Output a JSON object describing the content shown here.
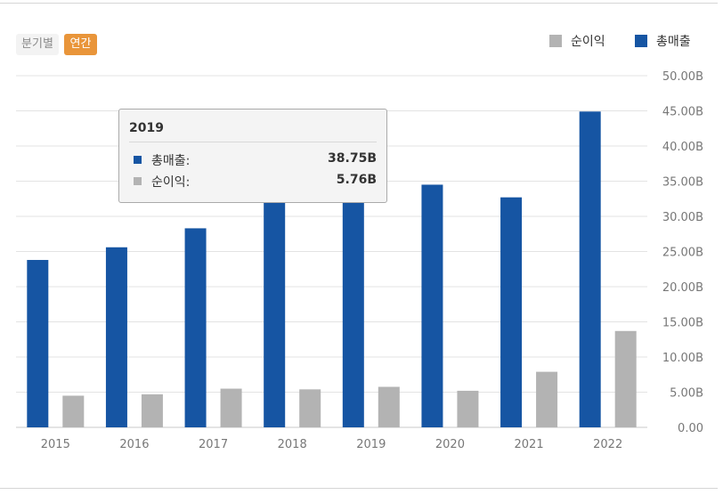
{
  "toggles": {
    "quarterly_label": "분기별",
    "annual_label": "연간",
    "active": "annual"
  },
  "legend": {
    "net_income_label": "순이익",
    "revenue_label": "총매출"
  },
  "colors": {
    "revenue": "#1655a3",
    "net_income": "#b3b3b3",
    "active_toggle": "#e9953a",
    "grid": "#e3e3e3"
  },
  "tooltip": {
    "year": "2019",
    "revenue_label": "총매출:",
    "revenue_value": "38.75B",
    "net_income_label": "순이익:",
    "net_income_value": "5.76B"
  },
  "chart_data": {
    "type": "bar",
    "categories": [
      "2015",
      "2016",
      "2017",
      "2018",
      "2019",
      "2020",
      "2021",
      "2022"
    ],
    "series": [
      {
        "name": "총매출",
        "values": [
          23.8,
          25.6,
          28.3,
          35.5,
          38.75,
          34.5,
          32.7,
          44.9
        ]
      },
      {
        "name": "순이익",
        "values": [
          4.5,
          4.7,
          5.5,
          5.4,
          5.76,
          5.2,
          7.9,
          13.7
        ]
      }
    ],
    "yticks": [
      "0.00",
      "5.00B",
      "10.00B",
      "15.00B",
      "20.00B",
      "25.00B",
      "30.00B",
      "35.00B",
      "40.00B",
      "45.00B",
      "50.00B"
    ],
    "ylim": [
      0,
      50
    ],
    "grid": true,
    "legend_position": "top-right"
  }
}
